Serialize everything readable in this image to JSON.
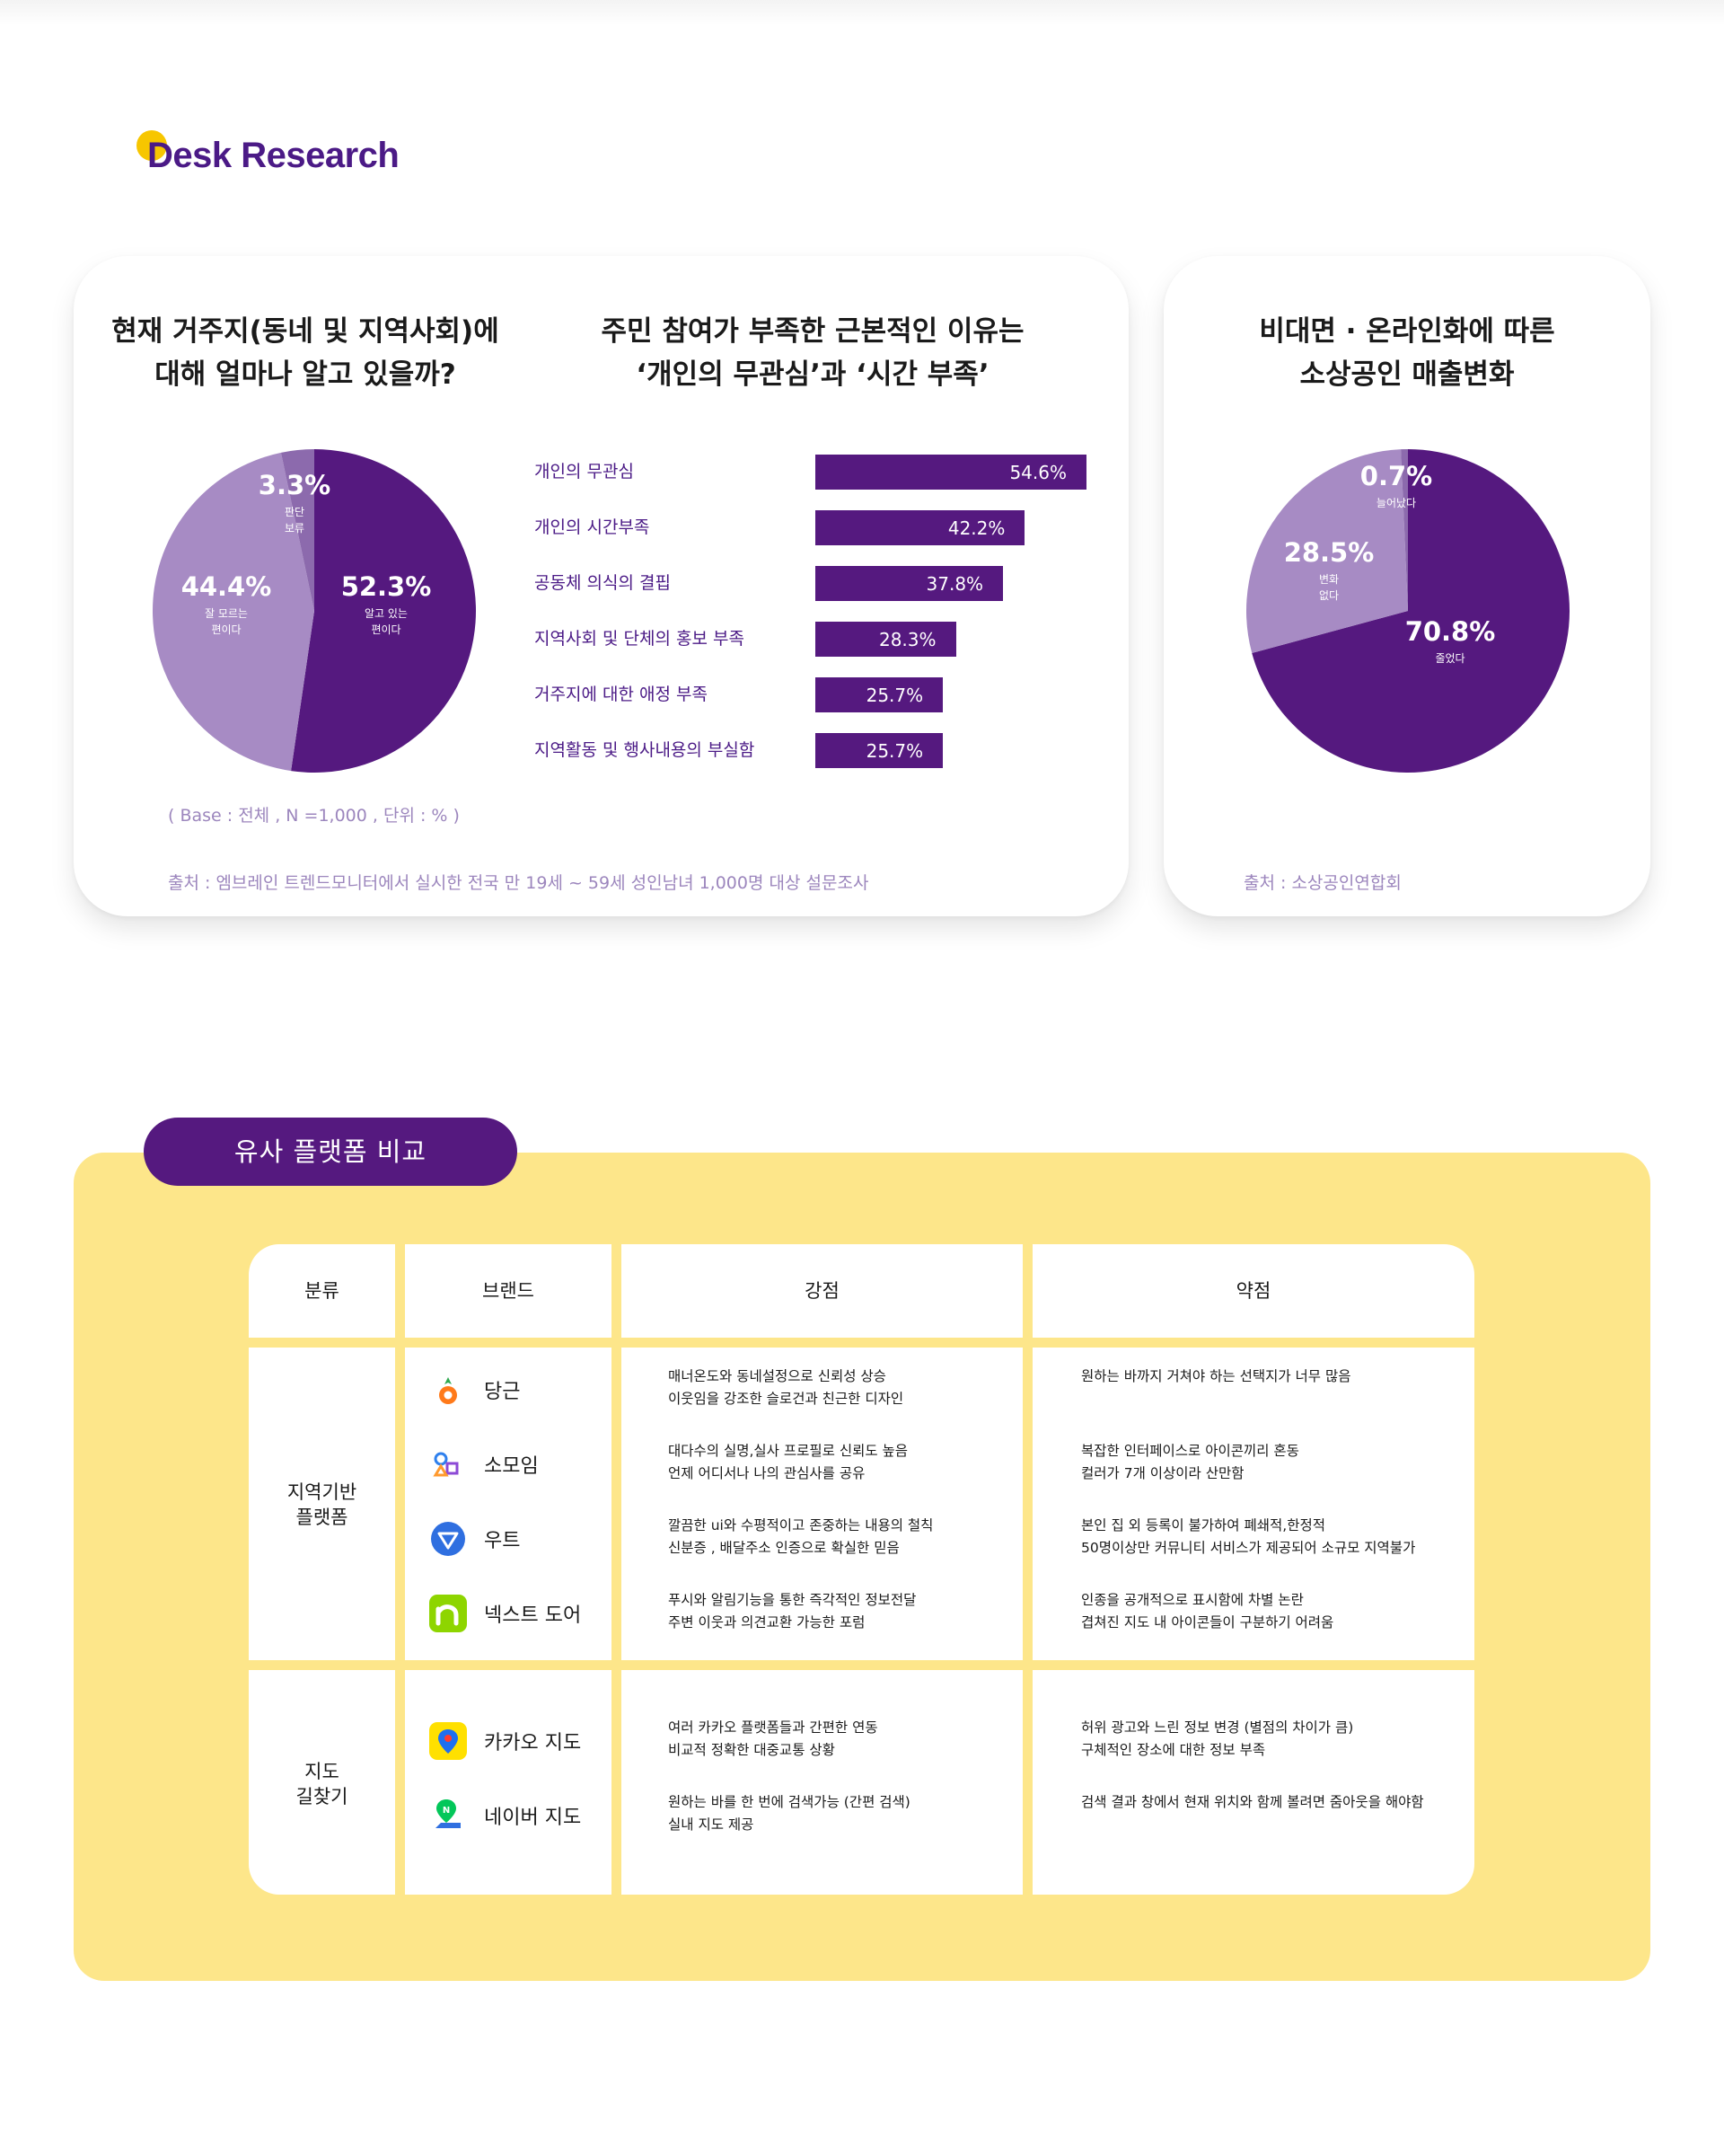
{
  "header": {
    "logo_text": "Desk Research",
    "logo_dot_color": "#f7c600",
    "brand_color": "#4b1a86"
  },
  "survey_card": {
    "pie_title": [
      "현재 거주지(동네 및 지역사회)에",
      "대해 얼마나 알고 있을까?"
    ],
    "bar_title": [
      "주민 참여가 부족한 근본적인 이유는",
      "‘개인의 무관심’과 ‘시간 부족’"
    ],
    "base_note": "( Base : 전체 , N =1,000 , 단위 : % )",
    "source": "출처 : 엠브레인 트렌드모니터에서 실시한 전국 만 19세 ~ 59세 성인남녀 1,000명 대상 설문조사"
  },
  "sales_card": {
    "title": [
      "비대면 · 온라인화에 따른",
      "소상공인 매출변화"
    ],
    "source": "출처 : 소상공인연합회"
  },
  "chart_data": [
    {
      "type": "pie",
      "title": "현재 거주지(동네 및 지역사회)에 대해 얼마나 알고 있을까?",
      "labels": [
        "알고 있는 편이다",
        "잘 모르는 편이다",
        "판단 보류"
      ],
      "values": [
        52.3,
        44.4,
        3.3
      ],
      "value_labels": [
        "52.3%",
        "44.4%",
        "3.3%"
      ],
      "colors": [
        "#55197f",
        "#a78bc4",
        "#8c6aad"
      ]
    },
    {
      "type": "bar",
      "orientation": "horizontal",
      "title": "주민 참여가 부족한 근본적인 이유는 ‘개인의 무관심’과 ‘시간 부족’",
      "categories": [
        "개인의 무관심",
        "개인의 시간부족",
        "공동체 의식의 결핍",
        "지역사회 및 단체의 홍보 부족",
        "거주지에 대한 애정 부족",
        "지역활동 및 행사내용의 부실함"
      ],
      "values": [
        54.6,
        42.2,
        37.8,
        28.3,
        25.7,
        25.7
      ],
      "value_labels": [
        "54.6%",
        "42.2%",
        "37.8%",
        "28.3%",
        "25.7%",
        "25.7%"
      ],
      "color": "#55197f"
    },
    {
      "type": "pie",
      "title": "비대면 · 온라인화에 따른 소상공인 매출변화",
      "labels": [
        "줄었다",
        "변화 없다",
        "늘어났다"
      ],
      "values": [
        70.8,
        28.5,
        0.7
      ],
      "value_labels": [
        "70.8%",
        "28.5%",
        "0.7%"
      ],
      "colors": [
        "#55197f",
        "#a78bc4",
        "#8c6aad"
      ]
    }
  ],
  "comparison": {
    "section_title": "유사 플랫폼 비교",
    "headers": [
      "분류",
      "브랜드",
      "강점",
      "약점"
    ],
    "groups": [
      {
        "category": [
          "지역기반",
          "플랫폼"
        ],
        "brands": [
          {
            "name": "당근",
            "icon": "carrot-icon",
            "strengths": [
              "매너온도와 동네설정으로 신뢰성 상승",
              "이웃임을 강조한 슬로건과 친근한 디자인"
            ],
            "weaknesses": [
              "원하는 바까지 거쳐야 하는 선택지가 너무 많음"
            ]
          },
          {
            "name": "소모임",
            "icon": "somoim-icon",
            "strengths": [
              "대다수의 실명,실사 프로필로 신뢰도 높음",
              "언제 어디서나 나의 관심사를 공유"
            ],
            "weaknesses": [
              "복잡한 인터페이스로 아이콘끼리 혼동",
              "컬러가 7개 이상이라 산만함"
            ]
          },
          {
            "name": "우트",
            "icon": "woot-icon",
            "strengths": [
              "깔끔한 ui와 수평적이고 존중하는 내용의 철칙",
              "신분증 , 배달주소 인증으로 확실한 믿음"
            ],
            "weaknesses": [
              "본인 집 외 등록이 불가하여 폐쇄적,한정적",
              "50명이상만 커뮤니티 서비스가 제공되어 소규모 지역불가"
            ]
          },
          {
            "name": "넥스트 도어",
            "icon": "nextdoor-icon",
            "strengths": [
              "푸시와 알림기능을 통한 즉각적인 정보전달",
              "주변 이웃과 의견교환 가능한 포럼"
            ],
            "weaknesses": [
              "인종을 공개적으로 표시함에 차별 논란",
              "겹쳐진 지도 내 아이콘들이 구분하기 어려움"
            ]
          }
        ]
      },
      {
        "category": [
          "지도",
          "길찾기"
        ],
        "brands": [
          {
            "name": "카카오 지도",
            "icon": "kakao-map-icon",
            "strengths": [
              "여러 카카오 플랫폼들과 간편한 연동",
              "비교적 정확한 대중교통 상황"
            ],
            "weaknesses": [
              "허위 광고와 느린 정보 변경 (별점의 차이가 큼)",
              "구체적인 장소에 대한 정보 부족"
            ]
          },
          {
            "name": "네이버 지도",
            "icon": "naver-map-icon",
            "strengths": [
              "원하는 바를 한 번에 검색가능 (간편 검색)",
              "실내 지도 제공"
            ],
            "weaknesses": [
              "검색 결과 창에서 현재 위치와 함께 볼려면 줌아웃을 해야함"
            ]
          }
        ]
      }
    ]
  }
}
